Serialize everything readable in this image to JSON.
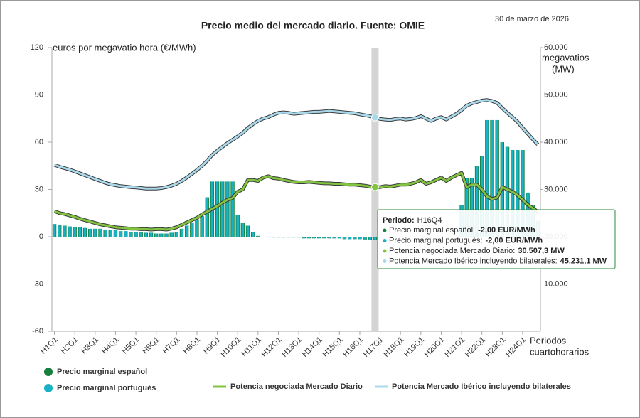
{
  "chart_data": {
    "type": "combo",
    "title": "Precio medio del mercado diario. Fuente: OMIE",
    "date": "30 de marzo de 2026",
    "y_label": "euros por megavatio hora (€/MWh)",
    "y2_label": [
      "megavatios",
      "(MW)"
    ],
    "x_label": [
      "Periodos",
      "cuartohorarios"
    ],
    "categories": [
      "H1Q1",
      null,
      null,
      null,
      "H2Q1",
      null,
      null,
      null,
      "H3Q1",
      null,
      null,
      null,
      "H4Q1",
      null,
      null,
      null,
      "H5Q1",
      null,
      null,
      null,
      "H6Q1",
      null,
      null,
      null,
      "H7Q1",
      null,
      null,
      null,
      "H8Q1",
      null,
      null,
      null,
      "H9Q1",
      null,
      null,
      null,
      "H10Q1",
      null,
      null,
      null,
      "H11Q1",
      null,
      null,
      null,
      "H12Q1",
      null,
      null,
      null,
      "H13Q1",
      null,
      null,
      null,
      "H14Q1",
      null,
      null,
      null,
      "H15Q1",
      null,
      null,
      null,
      "H16Q1",
      null,
      null,
      null,
      "H17Q1",
      null,
      null,
      null,
      "H18Q1",
      null,
      null,
      null,
      "H19Q1",
      null,
      null,
      null,
      "H20Q1",
      null,
      null,
      null,
      "H21Q1",
      null,
      null,
      null,
      "H22Q1",
      null,
      null,
      null,
      "H23Q1",
      null,
      null,
      null,
      "H24Q1",
      null,
      null,
      null
    ],
    "ylim": [
      -60,
      120
    ],
    "yticks": [
      -60,
      -30,
      0,
      30,
      60,
      90,
      120
    ],
    "y2lim": [
      0,
      60000
    ],
    "y2ticks": [
      {
        "value": 10000,
        "label": "10.000"
      },
      {
        "value": 20000,
        "label": "20.000"
      },
      {
        "value": 30000,
        "label": "30.000"
      },
      {
        "value": 40000,
        "label": "40.000"
      },
      {
        "value": 50000,
        "label": "50.000"
      },
      {
        "value": 60000,
        "label": "60.000"
      }
    ],
    "grid": false,
    "series": [
      {
        "name": "Precio marginal español",
        "type": "bar",
        "color": "#17803d",
        "values": [
          8,
          7.5,
          7,
          6.5,
          6,
          6,
          5.5,
          5,
          5,
          5,
          4.5,
          4.5,
          4,
          3.5,
          3.5,
          3,
          3,
          3,
          2.5,
          2.5,
          2,
          2,
          2,
          2.5,
          3,
          5,
          7,
          9,
          11,
          13,
          25,
          35,
          35,
          35,
          35,
          35,
          14,
          9,
          7,
          3,
          0.5,
          0,
          0,
          -0.5,
          -0.5,
          -0.5,
          -0.5,
          -0.5,
          -0.5,
          -1,
          -1,
          -1,
          -1,
          -1,
          -1,
          -1,
          -1,
          -1.5,
          -1.5,
          -1.5,
          -1.5,
          -2,
          -2,
          -2,
          0,
          0,
          0,
          0,
          0,
          0,
          0,
          0,
          0,
          0,
          0,
          0,
          0,
          0,
          0,
          0,
          20,
          37,
          37,
          45,
          51,
          74,
          74,
          74,
          60,
          57,
          55,
          55,
          55,
          28,
          20,
          10
        ]
      },
      {
        "name": "Precio marginal portugués",
        "type": "bar",
        "color": "#19b2c4",
        "values": [
          8,
          7.5,
          7,
          6.5,
          6,
          6,
          5.5,
          5,
          5,
          5,
          4.5,
          4.5,
          4,
          3.5,
          3.5,
          3,
          3,
          3,
          2.5,
          2.5,
          2,
          2,
          2,
          2.5,
          3,
          5,
          7,
          9,
          11,
          13,
          25,
          35,
          35,
          35,
          35,
          35,
          14,
          9,
          7,
          3,
          0.5,
          0,
          0,
          -0.5,
          -0.5,
          -0.5,
          -0.5,
          -0.5,
          -0.5,
          -1,
          -1,
          -1,
          -1,
          -1,
          -1,
          -1,
          -1,
          -1.5,
          -1.5,
          -1.5,
          -1.5,
          -2,
          -2,
          -2,
          0,
          0,
          0,
          0,
          0,
          0,
          0,
          0,
          0,
          0,
          0,
          0,
          0,
          0,
          0,
          0,
          20,
          37,
          37,
          45,
          51,
          74,
          74,
          74,
          60,
          57,
          55,
          55,
          55,
          28,
          20,
          10
        ]
      },
      {
        "name": "Potencia negociada Mercado Diario",
        "type": "line",
        "axis": "y2",
        "color": "#82c341",
        "values": [
          25400,
          25000,
          24800,
          24500,
          24200,
          23800,
          23500,
          23200,
          22900,
          22600,
          22400,
          22200,
          22000,
          21900,
          21800,
          21700,
          21700,
          21600,
          21600,
          21500,
          21600,
          21600,
          21500,
          21700,
          22000,
          22500,
          23000,
          23500,
          24000,
          24700,
          25300,
          25900,
          26500,
          27200,
          27800,
          28200,
          29500,
          30000,
          32000,
          32000,
          31800,
          32500,
          32800,
          32400,
          32300,
          32000,
          31800,
          31600,
          31500,
          31500,
          31600,
          31500,
          31400,
          31300,
          31300,
          31200,
          31200,
          31100,
          31000,
          31000,
          30900,
          30800,
          30600,
          30507.3,
          30500,
          30700,
          30600,
          30800,
          31000,
          31000,
          31200,
          31500,
          32000,
          31200,
          31500,
          32000,
          32500,
          31800,
          32500,
          33000,
          33500,
          30500,
          31000,
          31000,
          30000,
          28500,
          28000,
          28300,
          30500,
          30000,
          29500,
          28800,
          27800,
          26800,
          26000,
          25300
        ]
      },
      {
        "name": "Potencia Mercado Ibérico incluyendo bilaterales",
        "type": "line",
        "axis": "y2",
        "color": "#a8d8ea",
        "values": [
          35200,
          34800,
          34500,
          34200,
          33800,
          33400,
          33000,
          32600,
          32200,
          31800,
          31400,
          31100,
          30900,
          30700,
          30600,
          30500,
          30400,
          30300,
          30200,
          30200,
          30200,
          30300,
          30500,
          30800,
          31200,
          31800,
          32500,
          33300,
          34100,
          35000,
          36100,
          37300,
          38200,
          39000,
          39800,
          40500,
          41200,
          42000,
          43000,
          43800,
          44500,
          45000,
          45300,
          45800,
          46200,
          46300,
          46200,
          46000,
          46100,
          46200,
          46300,
          46400,
          46400,
          46500,
          46600,
          46500,
          46400,
          46300,
          46200,
          46100,
          45900,
          45700,
          45500,
          45231.1,
          44900,
          44800,
          44700,
          44900,
          45000,
          44800,
          44900,
          45100,
          45500,
          45000,
          44500,
          45000,
          45300,
          44800,
          45400,
          46000,
          46800,
          47700,
          48200,
          48500,
          48800,
          48900,
          48700,
          48300,
          47200,
          46200,
          45300,
          44300,
          43000,
          41800,
          40600,
          39500
        ]
      }
    ],
    "tooltip": {
      "title_label": "Periodo:",
      "period": "H16Q4",
      "rows": [
        {
          "label": "Precio marginal español:",
          "value": "-2,00 EUR/MWh"
        },
        {
          "label": "Precio marginal portugués:",
          "value": "-2,00 EUR/MWh"
        },
        {
          "label": "Potencia negociada Mercado Diario:",
          "value": "30.507,3 MW"
        },
        {
          "label": "Potencia Mercado Ibérico incluyendo bilaterales:",
          "value": "45.231,1 MW"
        }
      ]
    }
  }
}
